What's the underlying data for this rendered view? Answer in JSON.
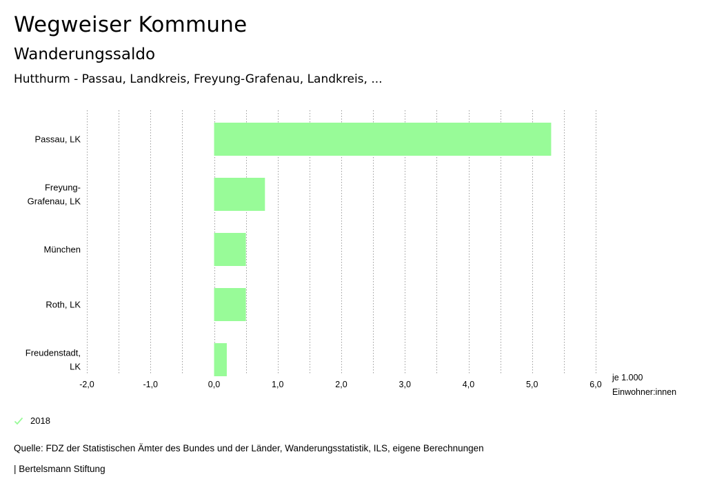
{
  "header": {
    "app_title": "Wegweiser Kommune",
    "subtitle": "Wanderungssaldo",
    "region": "Hutthurm - Passau, Landkreis, Freyung-Grafenau, Landkreis, ..."
  },
  "chart_data": {
    "type": "bar",
    "orientation": "horizontal",
    "categories": [
      [
        "Passau, LK"
      ],
      [
        "Freyung-",
        "Grafenau, LK"
      ],
      [
        "München"
      ],
      [
        "Roth, LK"
      ],
      [
        "Freudenstadt,",
        "LK"
      ]
    ],
    "series": [
      {
        "name": "2018",
        "values": [
          5.3,
          0.8,
          0.5,
          0.5,
          0.2
        ],
        "color": "#98fb98"
      }
    ],
    "xlim": [
      -2.0,
      6.0
    ],
    "x_ticks": [
      "-2,0",
      "-1,0",
      "0,0",
      "1,0",
      "2,0",
      "3,0",
      "4,0",
      "5,0",
      "6,0"
    ],
    "x_tick_values": [
      -2,
      -1,
      0,
      1,
      2,
      3,
      4,
      5,
      6
    ],
    "xlabel": [
      "je 1.000",
      "Einwohner:innen"
    ],
    "grid": true
  },
  "legend": {
    "label": "2018",
    "color": "#98fb98"
  },
  "source": "Quelle: FDZ der Statistischen Ämter des Bundes und der Länder, Wanderungsstatistik, ILS, eigene Berechnungen",
  "footer": "| Bertelsmann Stiftung"
}
